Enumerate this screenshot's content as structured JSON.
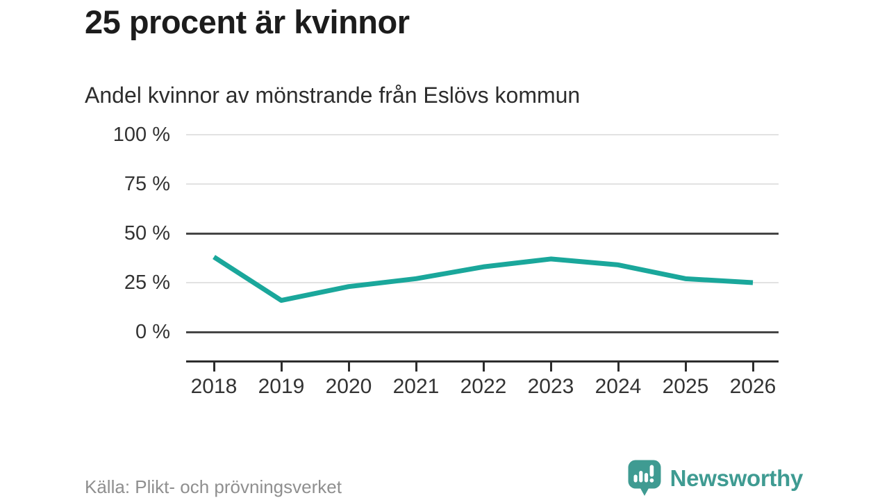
{
  "header": {
    "title": "25 procent är kvinnor",
    "subtitle": "Andel kvinnor av mönstrande från Eslövs kommun"
  },
  "chart_data": {
    "type": "line",
    "title": "25 procent är kvinnor",
    "subtitle": "Andel kvinnor av mönstrande från Eslövs kommun",
    "x": [
      2018,
      2019,
      2020,
      2021,
      2022,
      2023,
      2024,
      2025,
      2026
    ],
    "series": [
      {
        "name": "Andel kvinnor av mönstrande",
        "values": [
          38,
          16,
          23,
          27,
          33,
          37,
          34,
          27,
          25
        ]
      }
    ],
    "xlabel": "",
    "ylabel": "",
    "ylim": [
      0,
      100
    ],
    "yticks": [
      {
        "label": "0 %",
        "value": 0,
        "emphasized": true
      },
      {
        "label": "25 %",
        "value": 25,
        "emphasized": false
      },
      {
        "label": "50 %",
        "value": 50,
        "emphasized": true
      },
      {
        "label": "75 %",
        "value": 75,
        "emphasized": false
      },
      {
        "label": "100 %",
        "value": 100,
        "emphasized": false
      }
    ],
    "grid": true,
    "legend": "none",
    "line_color": "#1aa79b"
  },
  "footer": {
    "source": "Källa: Plikt- och prövningsverket",
    "brand": "Newsworthy"
  },
  "colors": {
    "accent": "#1aa79b",
    "brand_teal": "#3f9b92",
    "grid_light": "#e2e2e2",
    "grid_dark": "#454545",
    "axis": "#2d2d2d",
    "title_text": "#1c1c1c",
    "body_text": "#333333",
    "muted_text": "#8f8f8f"
  }
}
